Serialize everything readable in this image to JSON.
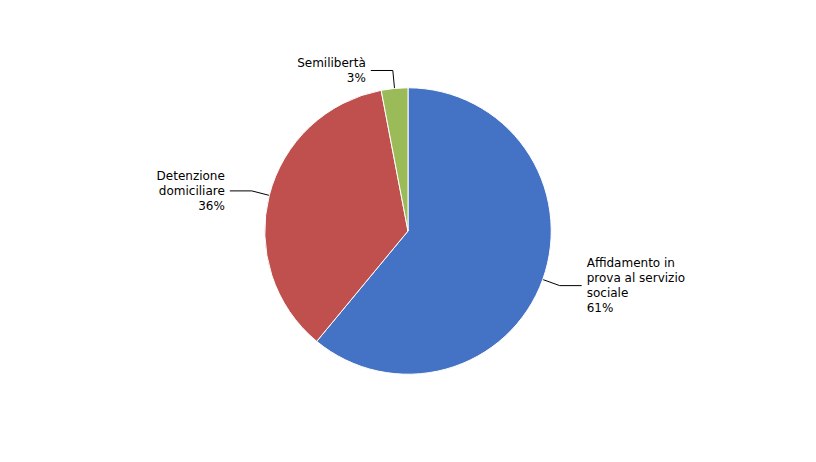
{
  "chart_data": {
    "type": "pie",
    "categories": [
      "Affidamento in\nprova al servizio\nsociale",
      "Detenzione\ndomiciliare",
      "Semilibertà"
    ],
    "values": [
      61,
      36,
      3
    ],
    "value_labels": [
      "61%",
      "36%",
      "3%"
    ],
    "data_labels": true,
    "colors": [
      "#4472C4",
      "#C0504D",
      "#9BBB59"
    ]
  }
}
